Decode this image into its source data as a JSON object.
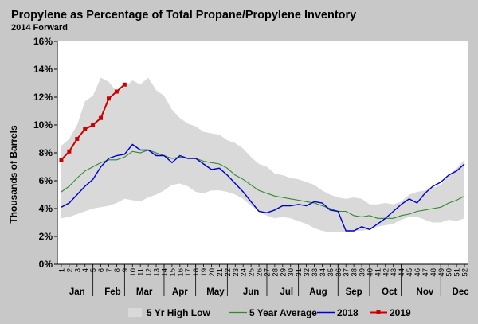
{
  "chart_data": {
    "type": "line",
    "title": "Propylene as Percentage of Total Propane/Propylene Inventory",
    "subtitle": "2014 Forward",
    "ylabel": "Thousands of Barrels",
    "xlabel": "",
    "ylim": [
      0,
      16
    ],
    "xlim": [
      1,
      52
    ],
    "grid": false,
    "y_tick_labels": [
      "0%",
      "2%",
      "4%",
      "6%",
      "8%",
      "10%",
      "12%",
      "14%",
      "16%"
    ],
    "x_week_labels": [
      "1",
      "2",
      "3",
      "4",
      "5",
      "6",
      "7",
      "8",
      "9",
      "10",
      "11",
      "12",
      "13",
      "14",
      "15",
      "16",
      "17",
      "18",
      "19",
      "20",
      "21",
      "22",
      "23",
      "24",
      "25",
      "26",
      "27",
      "28",
      "29",
      "30",
      "31",
      "32",
      "33",
      "34",
      "35",
      "36",
      "37",
      "38",
      "39",
      "40",
      "41",
      "42",
      "43",
      "44",
      "45",
      "46",
      "47",
      "48",
      "49",
      "50",
      "51",
      "52"
    ],
    "months": [
      {
        "label": "Jan",
        "center_week": 3
      },
      {
        "label": "Feb",
        "center_week": 7.5
      },
      {
        "label": "Mar",
        "center_week": 11.5
      },
      {
        "label": "Apr",
        "center_week": 16
      },
      {
        "label": "May",
        "center_week": 20.5
      },
      {
        "label": "Jun",
        "center_week": 25
      },
      {
        "label": "Jul",
        "center_week": 29.5
      },
      {
        "label": "Aug",
        "center_week": 33.5
      },
      {
        "label": "Sep",
        "center_week": 38
      },
      {
        "label": "Oct",
        "center_week": 42.5
      },
      {
        "label": "Nov",
        "center_week": 47
      },
      {
        "label": "Dec",
        "center_week": 51.5
      }
    ],
    "band": {
      "name": "5 Yr High Low",
      "color": "#d9d9d9",
      "high": [
        8.5,
        9.0,
        10.0,
        11.7,
        12.1,
        13.4,
        13.1,
        12.4,
        12.7,
        13.2,
        12.9,
        13.4,
        12.5,
        12.1,
        11.1,
        10.5,
        10.1,
        9.9,
        9.5,
        9.4,
        9.3,
        8.9,
        8.7,
        8.3,
        7.7,
        7.2,
        7.0,
        6.5,
        6.4,
        6.2,
        6.1,
        5.9,
        5.7,
        5.3,
        5.0,
        4.8,
        4.7,
        4.8,
        4.7,
        4.3,
        4.3,
        4.4,
        4.3,
        4.5,
        5.0,
        5.2,
        5.3,
        5.5,
        5.7,
        6.4,
        6.9,
        7.5
      ],
      "low": [
        3.3,
        3.4,
        3.6,
        3.8,
        4.0,
        4.1,
        4.2,
        4.4,
        4.7,
        4.6,
        4.5,
        4.8,
        5.0,
        5.3,
        5.7,
        5.8,
        5.6,
        5.2,
        5.1,
        5.3,
        5.3,
        5.2,
        5.0,
        4.7,
        4.2,
        3.8,
        3.5,
        3.3,
        3.4,
        3.3,
        3.1,
        2.9,
        2.6,
        2.4,
        2.3,
        2.3,
        2.3,
        2.4,
        2.4,
        2.5,
        2.7,
        2.8,
        2.9,
        3.2,
        3.4,
        3.4,
        3.2,
        3.0,
        3.0,
        3.2,
        3.1,
        3.3
      ]
    },
    "series": [
      {
        "name": "5 Year Average",
        "color": "#2e8b2e",
        "values": [
          5.2,
          5.6,
          6.2,
          6.7,
          7.0,
          7.3,
          7.5,
          7.5,
          7.7,
          8.1,
          8.0,
          8.2,
          8.0,
          7.8,
          7.6,
          7.7,
          7.6,
          7.6,
          7.4,
          7.3,
          7.2,
          6.9,
          6.4,
          6.1,
          5.7,
          5.3,
          5.1,
          4.9,
          4.8,
          4.7,
          4.6,
          4.5,
          4.4,
          4.2,
          4.0,
          3.8,
          3.8,
          3.5,
          3.4,
          3.5,
          3.3,
          3.3,
          3.3,
          3.5,
          3.6,
          3.8,
          3.9,
          4.0,
          4.1,
          4.4,
          4.6,
          4.9
        ]
      },
      {
        "name": "2018",
        "color": "#0000c8",
        "values": [
          4.1,
          4.4,
          5.0,
          5.6,
          6.1,
          7.0,
          7.6,
          7.8,
          7.9,
          8.6,
          8.2,
          8.2,
          7.8,
          7.8,
          7.3,
          7.8,
          7.6,
          7.6,
          7.2,
          6.8,
          6.9,
          6.4,
          5.8,
          5.2,
          4.5,
          3.8,
          3.7,
          3.9,
          4.2,
          4.2,
          4.3,
          4.2,
          4.5,
          4.4,
          3.9,
          3.8,
          2.4,
          2.4,
          2.7,
          2.5,
          2.9,
          3.3,
          3.8,
          4.3,
          4.7,
          4.4,
          5.1,
          5.6,
          5.9,
          6.4,
          6.7,
          7.2
        ]
      },
      {
        "name": "2019",
        "color": "#cc0000",
        "marker": "square",
        "values": [
          7.5,
          8.1,
          9.0,
          9.7,
          10.0,
          10.5,
          11.9,
          12.4,
          12.9
        ]
      }
    ],
    "legend_placement": "bottom"
  }
}
